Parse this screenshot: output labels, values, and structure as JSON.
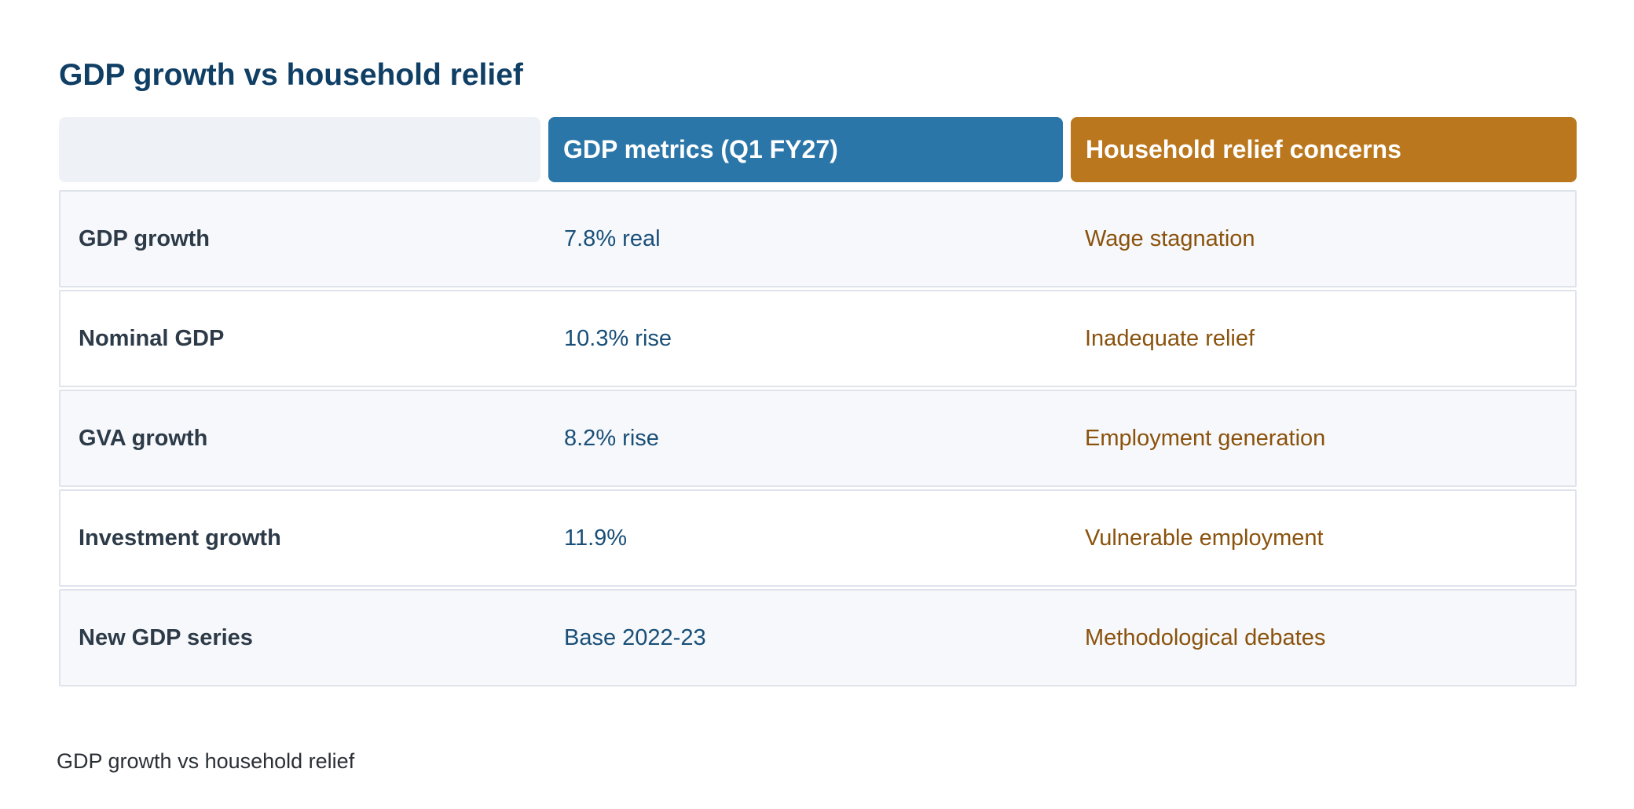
{
  "title": "GDP growth vs household relief",
  "table": {
    "headers": {
      "blank": "",
      "gdp": "GDP metrics (Q1 FY27)",
      "household": "Household relief concerns"
    },
    "rows": [
      {
        "label": "GDP growth",
        "gdp": "7.8% real",
        "household": "Wage stagnation"
      },
      {
        "label": "Nominal GDP",
        "gdp": "10.3% rise",
        "household": "Inadequate relief"
      },
      {
        "label": "GVA growth",
        "gdp": "8.2% rise",
        "household": "Employment generation"
      },
      {
        "label": "Investment growth",
        "gdp": "11.9%",
        "household": "Vulnerable employment"
      },
      {
        "label": "New GDP series",
        "gdp": "Base 2022-23",
        "household": "Methodological debates"
      }
    ]
  },
  "caption": "GDP growth vs household relief",
  "colors": {
    "title": "#103f66",
    "gdp_header": "#2a76a8",
    "household_header": "#ba771d",
    "gdp_text": "#194f78",
    "household_text": "#8a520c"
  }
}
